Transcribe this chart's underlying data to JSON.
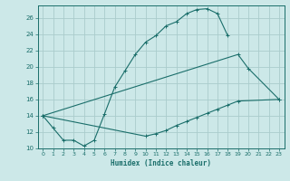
{
  "title": "",
  "xlabel": "Humidex (Indice chaleur)",
  "bg_color": "#cce8e8",
  "grid_color": "#aacccc",
  "line_color": "#1a6e6a",
  "xlim": [
    -0.5,
    23.5
  ],
  "ylim": [
    10,
    27.5
  ],
  "xticks": [
    0,
    1,
    2,
    3,
    4,
    5,
    6,
    7,
    8,
    9,
    10,
    11,
    12,
    13,
    14,
    15,
    16,
    17,
    18,
    19,
    20,
    21,
    22,
    23
  ],
  "yticks": [
    10,
    12,
    14,
    16,
    18,
    20,
    22,
    24,
    26
  ],
  "line1_x": [
    0,
    1,
    2,
    3,
    4,
    5,
    6,
    7,
    8,
    9,
    10,
    11,
    12,
    13,
    14,
    15,
    16,
    17,
    18
  ],
  "line1_y": [
    14,
    12.5,
    11.0,
    11.0,
    10.3,
    11.0,
    14.2,
    17.5,
    19.5,
    21.5,
    23.0,
    23.8,
    25.0,
    25.5,
    26.5,
    27.0,
    27.1,
    26.5,
    23.8
  ],
  "line2_x": [
    0,
    19,
    20,
    23
  ],
  "line2_y": [
    14,
    21.5,
    19.8,
    16.0
  ],
  "line3_x": [
    0,
    10,
    11,
    12,
    13,
    14,
    15,
    16,
    17,
    18,
    19,
    23
  ],
  "line3_y": [
    14,
    11.5,
    11.8,
    12.2,
    12.8,
    13.3,
    13.8,
    14.3,
    14.8,
    15.3,
    15.8,
    16.0
  ]
}
